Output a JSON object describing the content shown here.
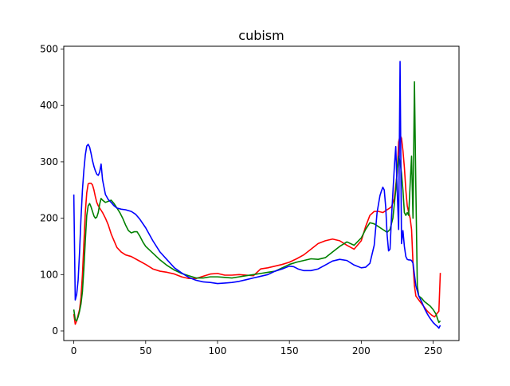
{
  "chart_data": {
    "type": "line",
    "title": "cubism",
    "xlabel": "",
    "ylabel": "",
    "xlim": [
      -7,
      268
    ],
    "ylim": [
      -17,
      505
    ],
    "xticks": [
      0,
      50,
      100,
      150,
      200,
      250
    ],
    "yticks": [
      0,
      100,
      200,
      300,
      400,
      500
    ],
    "grid": false,
    "legend": "none",
    "series": [
      {
        "color": "#ff0000",
        "points": [
          [
            0,
            30
          ],
          [
            1,
            12
          ],
          [
            2,
            18
          ],
          [
            3,
            28
          ],
          [
            4,
            38
          ],
          [
            5,
            60
          ],
          [
            6,
            100
          ],
          [
            7,
            155
          ],
          [
            8,
            210
          ],
          [
            9,
            245
          ],
          [
            10,
            261
          ],
          [
            11,
            262
          ],
          [
            12,
            262
          ],
          [
            13,
            259
          ],
          [
            14,
            250
          ],
          [
            15,
            238
          ],
          [
            16,
            228
          ],
          [
            17,
            222
          ],
          [
            18,
            218
          ],
          [
            20,
            210
          ],
          [
            22,
            200
          ],
          [
            24,
            188
          ],
          [
            26,
            172
          ],
          [
            28,
            160
          ],
          [
            30,
            148
          ],
          [
            33,
            140
          ],
          [
            36,
            135
          ],
          [
            40,
            132
          ],
          [
            45,
            125
          ],
          [
            50,
            118
          ],
          [
            55,
            110
          ],
          [
            60,
            106
          ],
          [
            65,
            104
          ],
          [
            70,
            101
          ],
          [
            75,
            96
          ],
          [
            80,
            93
          ],
          [
            85,
            93
          ],
          [
            90,
            97
          ],
          [
            95,
            101
          ],
          [
            100,
            102
          ],
          [
            105,
            99
          ],
          [
            110,
            99
          ],
          [
            115,
            100
          ],
          [
            120,
            99
          ],
          [
            125,
            98
          ],
          [
            130,
            110
          ],
          [
            135,
            112
          ],
          [
            140,
            115
          ],
          [
            145,
            118
          ],
          [
            150,
            122
          ],
          [
            155,
            128
          ],
          [
            160,
            135
          ],
          [
            165,
            145
          ],
          [
            170,
            155
          ],
          [
            175,
            160
          ],
          [
            180,
            163
          ],
          [
            185,
            160
          ],
          [
            190,
            152
          ],
          [
            195,
            145
          ],
          [
            200,
            160
          ],
          [
            203,
            185
          ],
          [
            206,
            205
          ],
          [
            209,
            212
          ],
          [
            212,
            212
          ],
          [
            215,
            210
          ],
          [
            218,
            215
          ],
          [
            221,
            220
          ],
          [
            223,
            235
          ],
          [
            225,
            280
          ],
          [
            226,
            335
          ],
          [
            227,
            347
          ],
          [
            228,
            342
          ],
          [
            229,
            320
          ],
          [
            230,
            290
          ],
          [
            231,
            250
          ],
          [
            232,
            222
          ],
          [
            233,
            210
          ],
          [
            234,
            200
          ],
          [
            235,
            180
          ],
          [
            236,
            120
          ],
          [
            237,
            80
          ],
          [
            238,
            62
          ],
          [
            240,
            55
          ],
          [
            243,
            45
          ],
          [
            246,
            35
          ],
          [
            249,
            28
          ],
          [
            251,
            25
          ],
          [
            253,
            32
          ],
          [
            254,
            35
          ],
          [
            255,
            103
          ]
        ]
      },
      {
        "color": "#008000",
        "points": [
          [
            0,
            38
          ],
          [
            1,
            20
          ],
          [
            2,
            18
          ],
          [
            3,
            25
          ],
          [
            4,
            35
          ],
          [
            5,
            48
          ],
          [
            6,
            70
          ],
          [
            7,
            110
          ],
          [
            8,
            160
          ],
          [
            9,
            205
          ],
          [
            10,
            222
          ],
          [
            11,
            226
          ],
          [
            12,
            220
          ],
          [
            13,
            212
          ],
          [
            14,
            204
          ],
          [
            15,
            200
          ],
          [
            16,
            202
          ],
          [
            17,
            210
          ],
          [
            18,
            225
          ],
          [
            19,
            235
          ],
          [
            20,
            232
          ],
          [
            22,
            228
          ],
          [
            24,
            230
          ],
          [
            26,
            232
          ],
          [
            28,
            226
          ],
          [
            30,
            218
          ],
          [
            32,
            210
          ],
          [
            34,
            200
          ],
          [
            36,
            188
          ],
          [
            38,
            178
          ],
          [
            40,
            174
          ],
          [
            42,
            176
          ],
          [
            44,
            176
          ],
          [
            46,
            168
          ],
          [
            48,
            158
          ],
          [
            50,
            150
          ],
          [
            55,
            138
          ],
          [
            60,
            126
          ],
          [
            65,
            116
          ],
          [
            70,
            108
          ],
          [
            75,
            102
          ],
          [
            80,
            98
          ],
          [
            85,
            94
          ],
          [
            90,
            94
          ],
          [
            95,
            96
          ],
          [
            100,
            96
          ],
          [
            105,
            95
          ],
          [
            110,
            94
          ],
          [
            115,
            96
          ],
          [
            120,
            98
          ],
          [
            125,
            100
          ],
          [
            130,
            102
          ],
          [
            135,
            104
          ],
          [
            140,
            106
          ],
          [
            145,
            112
          ],
          [
            150,
            118
          ],
          [
            155,
            122
          ],
          [
            160,
            125
          ],
          [
            165,
            128
          ],
          [
            170,
            127
          ],
          [
            175,
            130
          ],
          [
            180,
            140
          ],
          [
            185,
            150
          ],
          [
            190,
            158
          ],
          [
            195,
            152
          ],
          [
            200,
            165
          ],
          [
            203,
            180
          ],
          [
            206,
            192
          ],
          [
            209,
            190
          ],
          [
            212,
            185
          ],
          [
            215,
            180
          ],
          [
            218,
            175
          ],
          [
            220,
            180
          ],
          [
            222,
            200
          ],
          [
            224,
            250
          ],
          [
            225,
            285
          ],
          [
            226,
            310
          ],
          [
            227,
            300
          ],
          [
            228,
            280
          ],
          [
            229,
            250
          ],
          [
            230,
            210
          ],
          [
            231,
            205
          ],
          [
            232,
            210
          ],
          [
            233,
            205
          ],
          [
            234,
            260
          ],
          [
            235,
            310
          ],
          [
            236,
            200
          ],
          [
            237,
            442
          ],
          [
            238,
            250
          ],
          [
            239,
            80
          ],
          [
            240,
            62
          ],
          [
            242,
            58
          ],
          [
            244,
            52
          ],
          [
            246,
            48
          ],
          [
            248,
            44
          ],
          [
            250,
            38
          ],
          [
            252,
            30
          ],
          [
            253,
            22
          ],
          [
            254,
            15
          ],
          [
            255,
            18
          ]
        ]
      },
      {
        "color": "#0000ff",
        "points": [
          [
            0,
            242
          ],
          [
            1,
            55
          ],
          [
            2,
            65
          ],
          [
            3,
            90
          ],
          [
            4,
            140
          ],
          [
            5,
            200
          ],
          [
            6,
            250
          ],
          [
            7,
            285
          ],
          [
            8,
            312
          ],
          [
            9,
            328
          ],
          [
            10,
            331
          ],
          [
            11,
            326
          ],
          [
            12,
            315
          ],
          [
            13,
            302
          ],
          [
            14,
            292
          ],
          [
            15,
            284
          ],
          [
            16,
            278
          ],
          [
            17,
            276
          ],
          [
            18,
            282
          ],
          [
            19,
            296
          ],
          [
            20,
            268
          ],
          [
            22,
            242
          ],
          [
            24,
            233
          ],
          [
            26,
            228
          ],
          [
            28,
            222
          ],
          [
            30,
            218
          ],
          [
            33,
            216
          ],
          [
            36,
            215
          ],
          [
            40,
            212
          ],
          [
            43,
            207
          ],
          [
            46,
            198
          ],
          [
            50,
            183
          ],
          [
            55,
            160
          ],
          [
            60,
            140
          ],
          [
            65,
            126
          ],
          [
            70,
            112
          ],
          [
            75,
            103
          ],
          [
            80,
            95
          ],
          [
            85,
            90
          ],
          [
            90,
            87
          ],
          [
            95,
            86
          ],
          [
            100,
            84
          ],
          [
            105,
            85
          ],
          [
            110,
            86
          ],
          [
            115,
            88
          ],
          [
            120,
            91
          ],
          [
            125,
            94
          ],
          [
            130,
            97
          ],
          [
            135,
            100
          ],
          [
            140,
            106
          ],
          [
            145,
            110
          ],
          [
            150,
            115
          ],
          [
            153,
            114
          ],
          [
            156,
            110
          ],
          [
            160,
            107
          ],
          [
            165,
            107
          ],
          [
            170,
            110
          ],
          [
            175,
            117
          ],
          [
            180,
            124
          ],
          [
            185,
            127
          ],
          [
            190,
            125
          ],
          [
            195,
            117
          ],
          [
            200,
            112
          ],
          [
            203,
            113
          ],
          [
            206,
            120
          ],
          [
            209,
            152
          ],
          [
            211,
            210
          ],
          [
            213,
            240
          ],
          [
            214,
            248
          ],
          [
            215,
            255
          ],
          [
            216,
            250
          ],
          [
            217,
            220
          ],
          [
            218,
            170
          ],
          [
            219,
            142
          ],
          [
            220,
            145
          ],
          [
            221,
            200
          ],
          [
            222,
            245
          ],
          [
            223,
            290
          ],
          [
            224,
            327
          ],
          [
            225,
            250
          ],
          [
            226,
            180
          ],
          [
            227,
            478
          ],
          [
            228,
            155
          ],
          [
            229,
            178
          ],
          [
            230,
            150
          ],
          [
            231,
            132
          ],
          [
            232,
            127
          ],
          [
            233,
            126
          ],
          [
            234,
            126
          ],
          [
            235,
            125
          ],
          [
            236,
            120
          ],
          [
            237,
            100
          ],
          [
            238,
            80
          ],
          [
            240,
            62
          ],
          [
            242,
            52
          ],
          [
            244,
            40
          ],
          [
            246,
            30
          ],
          [
            248,
            22
          ],
          [
            250,
            15
          ],
          [
            252,
            10
          ],
          [
            253,
            8
          ],
          [
            254,
            5
          ],
          [
            255,
            10
          ]
        ]
      }
    ]
  }
}
